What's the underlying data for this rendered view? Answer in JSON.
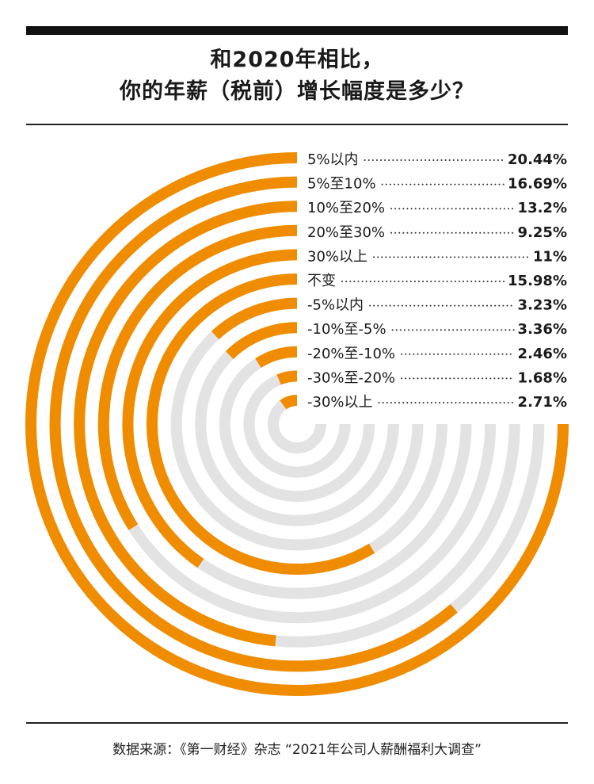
{
  "title": {
    "line1": "和2020年相比，",
    "line2": "你的年薪（税前）增长幅度是多少？"
  },
  "source": "数据来源：《第一财经》杂志 “2021年公司人薪酬福利大调查”",
  "colors": {
    "accent": "#f08c00",
    "track": "#e3e3e3"
  },
  "chart_data": {
    "type": "radial-bar",
    "unit": "%",
    "categories": [
      "5%以内",
      "5%至10%",
      "10%至20%",
      "20%至30%",
      "30%以上",
      "不变",
      "-5%以内",
      "-10%至-5%",
      "-20%至-10%",
      "-30%至-20%",
      "-30%以上"
    ],
    "values": [
      20.44,
      16.69,
      13.2,
      9.25,
      11,
      15.98,
      3.23,
      3.36,
      2.46,
      1.68,
      2.71
    ],
    "value_labels": [
      "20.44%",
      "16.69%",
      "13.2%",
      "9.25%",
      "11%",
      "15.98%",
      "3.23%",
      "3.36%",
      "2.46%",
      "1.68%",
      "2.71%"
    ],
    "max_value": 20.44,
    "max_sweep_degrees": 270
  }
}
